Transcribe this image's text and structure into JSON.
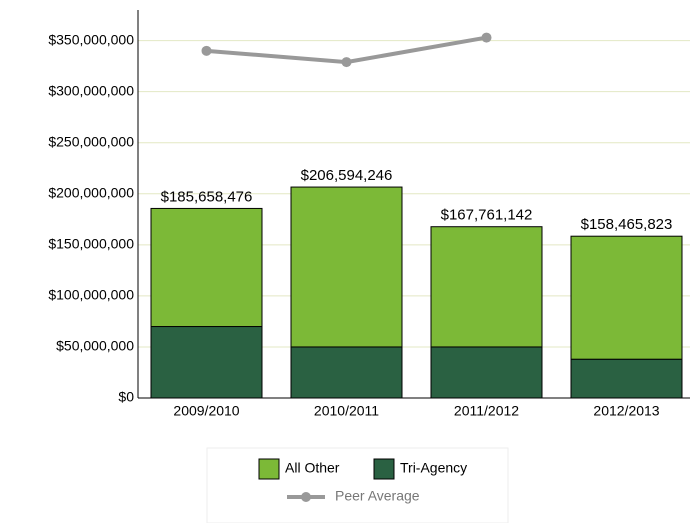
{
  "chart_data": {
    "type": "bar",
    "categories": [
      "2009/2010",
      "2010/2011",
      "2011/2012",
      "2012/2013"
    ],
    "series": [
      {
        "name": "Tri-Agency",
        "color": "#2a6142",
        "values": [
          70000000,
          50000000,
          50000000,
          38000000
        ]
      },
      {
        "name": "All Other",
        "color": "#7cb937",
        "values": [
          115658476,
          156594246,
          117761142,
          120465823
        ]
      },
      {
        "name": "Peer Average",
        "color": "#999999",
        "type": "line",
        "values": [
          340000000,
          329000000,
          353000000,
          null
        ]
      }
    ],
    "total_labels": [
      "$185,658,476",
      "$206,594,246",
      "$167,761,142",
      "$158,465,823"
    ],
    "legend_order": [
      "All Other",
      "Tri-Agency",
      "Peer Average"
    ],
    "ylim": [
      0,
      380000000
    ],
    "yticks": [
      {
        "value": 0,
        "label": "$0"
      },
      {
        "value": 50000000,
        "label": "$50,000,000"
      },
      {
        "value": 100000000,
        "label": "$100,000,000"
      },
      {
        "value": 150000000,
        "label": "$150,000,000"
      },
      {
        "value": 200000000,
        "label": "$200,000,000"
      },
      {
        "value": 250000000,
        "label": "$250,000,000"
      },
      {
        "value": 300000000,
        "label": "$300,000,000"
      },
      {
        "value": 350000000,
        "label": "$350,000,000"
      }
    ],
    "grid": true
  }
}
